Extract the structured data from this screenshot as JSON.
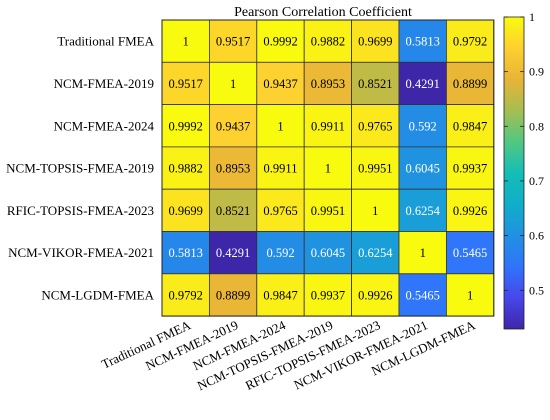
{
  "chart_data": {
    "type": "heatmap",
    "title": "Pearson Correlation Coefficient",
    "row_labels": [
      "Traditional FMEA",
      "NCM-FMEA-2019",
      "NCM-FMEA-2024",
      "NCM-TOPSIS-FMEA-2019",
      "RFIC-TOPSIS-FMEA-2023",
      "NCM-VIKOR-FMEA-2021",
      "NCM-LGDM-FMEA"
    ],
    "col_labels": [
      "Traditional FMEA",
      "NCM-FMEA-2019",
      "NCM-FMEA-2024",
      "NCM-TOPSIS-FMEA-2019",
      "RFIC-TOPSIS-FMEA-2023",
      "NCM-VIKOR-FMEA-2021",
      "NCM-LGDM-FMEA"
    ],
    "values": [
      [
        "1",
        "0.9517",
        "0.9992",
        "0.9882",
        "0.9699",
        "0.5813",
        "0.9792"
      ],
      [
        "0.9517",
        "1",
        "0.9437",
        "0.8953",
        "0.8521",
        "0.4291",
        "0.8899"
      ],
      [
        "0.9992",
        "0.9437",
        "1",
        "0.9911",
        "0.9765",
        "0.592",
        "0.9847"
      ],
      [
        "0.9882",
        "0.8953",
        "0.9911",
        "1",
        "0.9951",
        "0.6045",
        "0.9937"
      ],
      [
        "0.9699",
        "0.8521",
        "0.9765",
        "0.9951",
        "1",
        "0.6254",
        "0.9926"
      ],
      [
        "0.5813",
        "0.4291",
        "0.592",
        "0.6045",
        "0.6254",
        "1",
        "0.5465"
      ],
      [
        "0.9792",
        "0.8899",
        "0.9847",
        "0.9937",
        "0.9926",
        "0.5465",
        "1"
      ]
    ],
    "colormap": "parula",
    "colorbar": {
      "range": [
        0.4291,
        1
      ],
      "ticks": [
        "0.5",
        "0.6",
        "0.7",
        "0.8",
        "0.9",
        "1"
      ]
    }
  }
}
